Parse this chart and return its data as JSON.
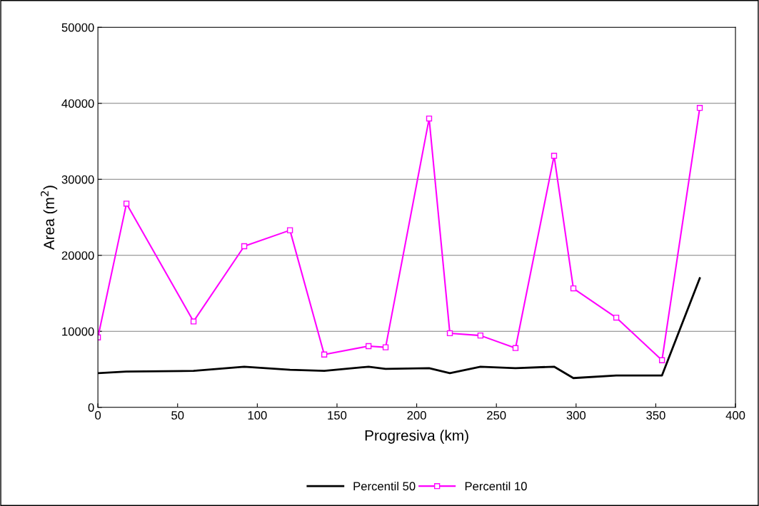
{
  "chart_data": {
    "type": "line",
    "xlabel": "Progresiva (km)",
    "ylabel": "Area (m$^{2}$)",
    "xlim": [
      0,
      400
    ],
    "xticks": [
      0,
      50,
      100,
      150,
      200,
      250,
      300,
      350,
      400
    ],
    "ylim": [
      0,
      50000
    ],
    "yticks": [
      0,
      10000,
      20000,
      30000,
      40000,
      50000
    ],
    "grid": "y",
    "legend": "bottom",
    "x": [
      0,
      17.9,
      60,
      91.8,
      120.5,
      142,
      169.8,
      180.5,
      207.8,
      220.8,
      240,
      262,
      286.2,
      298.3,
      325.2,
      353.9,
      377.6
    ],
    "series": [
      {
        "name": "Percentil 50",
        "color": "#000000",
        "marker": "none",
        "values": [
          4500,
          4700,
          4800,
          5350,
          4950,
          4800,
          5350,
          5050,
          5150,
          4500,
          5350,
          5150,
          5350,
          3850,
          4200,
          4200,
          17000
        ]
      },
      {
        "name": "Percentil 10",
        "color": "#ff00ff",
        "marker": "square",
        "values": [
          9200,
          26800,
          11300,
          21200,
          23300,
          6950,
          8050,
          7900,
          38000,
          9750,
          9450,
          7800,
          33100,
          15650,
          11800,
          6200,
          39400
        ]
      }
    ]
  }
}
